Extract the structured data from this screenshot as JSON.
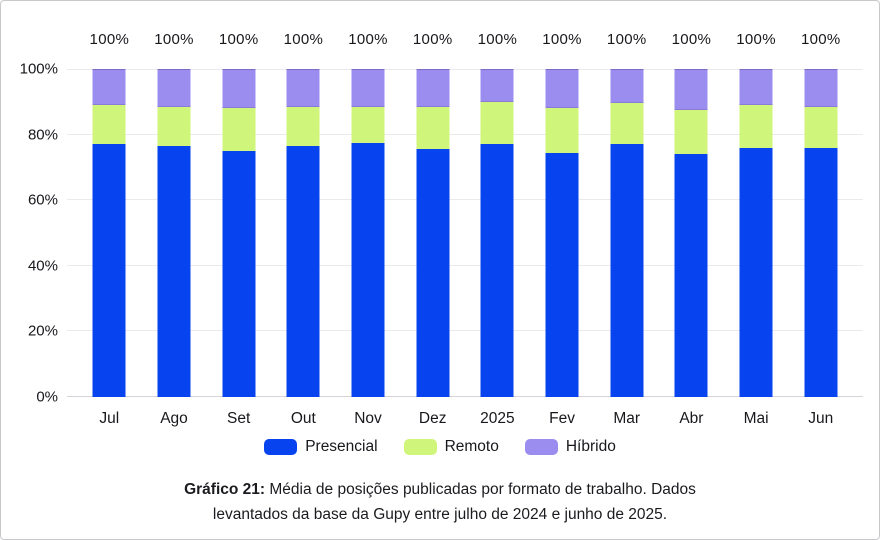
{
  "chart_data": {
    "type": "bar",
    "stacked": true,
    "categories": [
      "Jul",
      "Ago",
      "Set",
      "Out",
      "Nov",
      "Dez",
      "2025",
      "Fev",
      "Mar",
      "Abr",
      "Mai",
      "Jun"
    ],
    "series": [
      {
        "name": "Presencial",
        "color": "#0743ee",
        "values": [
          77,
          76.5,
          75,
          76.5,
          77.5,
          75.5,
          77,
          74.5,
          77,
          74,
          76,
          76
        ]
      },
      {
        "name": "Remoto",
        "color": "#cff57a",
        "values": [
          12,
          12,
          13,
          12,
          11,
          13,
          13,
          13.5,
          12.5,
          13.5,
          13,
          12.5
        ]
      },
      {
        "name": "Híbrido",
        "color": "#9b8df0",
        "values": [
          11,
          11.5,
          12,
          11.5,
          11.5,
          11.5,
          10,
          12,
          10.5,
          12.5,
          11,
          11.5
        ]
      }
    ],
    "bar_total_label": "100%",
    "y_ticks": [
      "100%",
      "80%",
      "60%",
      "40%",
      "20%",
      "0%"
    ],
    "ylim": [
      0,
      100
    ],
    "grid": true,
    "legend_position": "bottom"
  },
  "caption": {
    "prefix": "Gráfico 21:",
    "text": "Média de posições publicadas por formato de trabalho. Dados levantados da base da Gupy entre julho de 2024 e junho de 2025."
  },
  "colors": {
    "presencial": "#0743ee",
    "remoto": "#cff57a",
    "hibrido": "#9b8df0",
    "gridline": "#e9e9ee",
    "axis_line": "#d4d4da",
    "text": "#17181c",
    "card_border": "#c9c9cc",
    "background": "#ffffff"
  }
}
